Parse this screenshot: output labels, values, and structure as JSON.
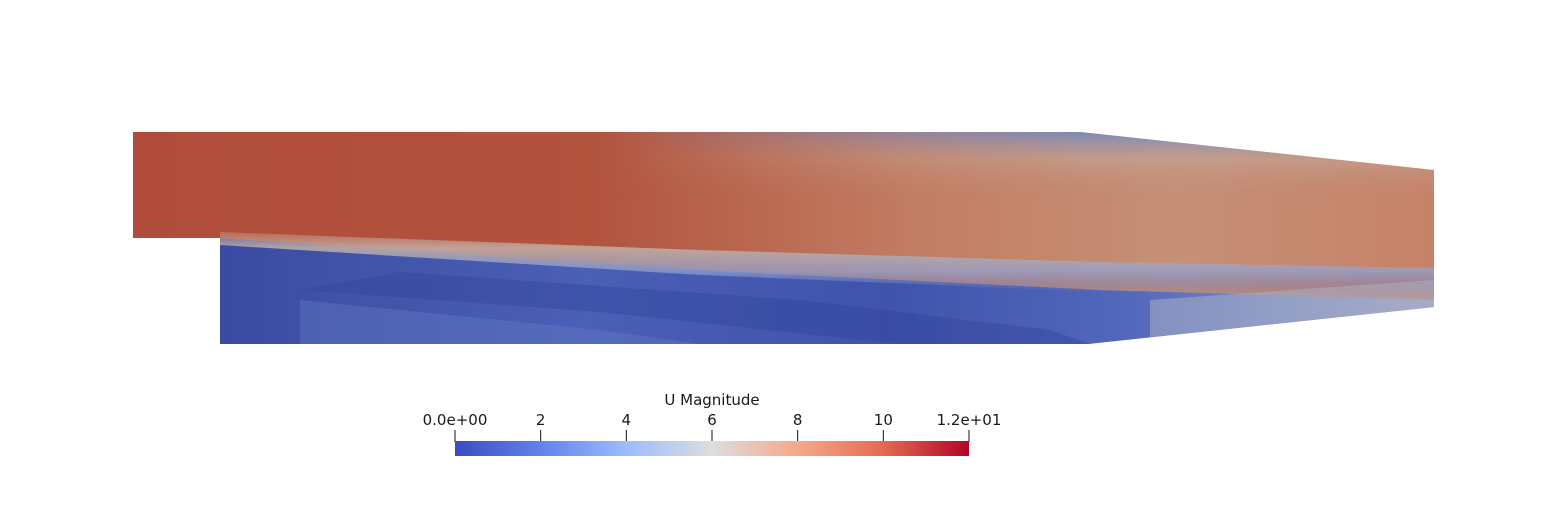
{
  "legend": {
    "title": "U Magnitude",
    "range": [
      0,
      12
    ],
    "ticks": [
      {
        "value": 0,
        "label": "0.0e+00"
      },
      {
        "value": 2,
        "label": "2"
      },
      {
        "value": 4,
        "label": "4"
      },
      {
        "value": 6,
        "label": "6"
      },
      {
        "value": 8,
        "label": "8"
      },
      {
        "value": 10,
        "label": "10"
      },
      {
        "value": 12,
        "label": "1.2e+01"
      }
    ],
    "colormap": [
      "#3b4cc0",
      "#6f91f2",
      "#aac7fd",
      "#dddddd",
      "#f7b89c",
      "#e7745b",
      "#b40426"
    ]
  },
  "field_colors": {
    "jet_core": "#b04f3c",
    "jet_mid": "#c98770",
    "shear_layer": "#c2b3a8",
    "recirculation_low": "#34459c",
    "recirculation_mid": "#5b72c4",
    "outlet_blend": "#a9b0c6"
  }
}
